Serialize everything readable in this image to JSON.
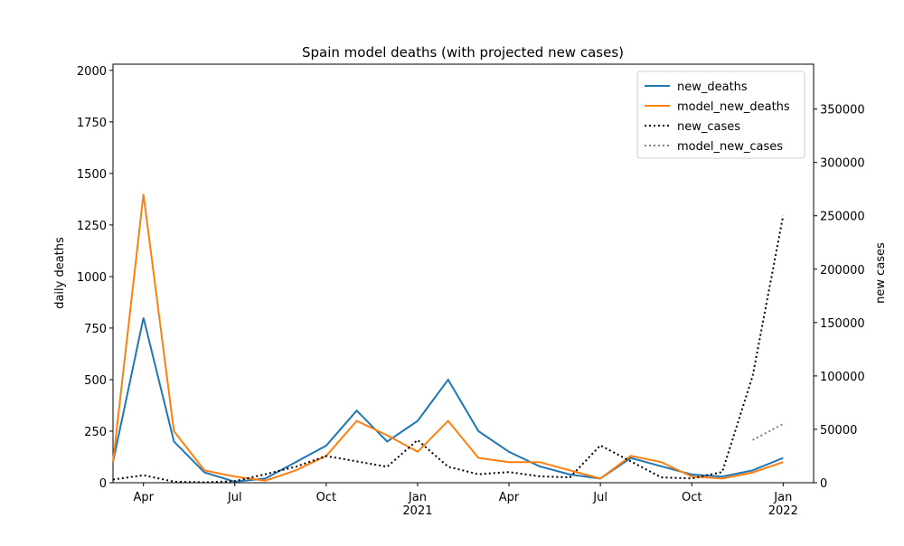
{
  "chart_data": {
    "type": "line",
    "title": "Spain model deaths (with projected new cases)",
    "ylabel": "daily deaths",
    "y2label": "new cases",
    "x": [
      "2020-03",
      "2020-04",
      "2020-05",
      "2020-06",
      "2020-07",
      "2020-08",
      "2020-09",
      "2020-10",
      "2020-11",
      "2020-12",
      "2021-01",
      "2021-02",
      "2021-03",
      "2021-04",
      "2021-05",
      "2021-06",
      "2021-07",
      "2021-08",
      "2021-09",
      "2021-10",
      "2021-11",
      "2021-12",
      "2022-01"
    ],
    "xlim": [
      "2020-03",
      "2022-02"
    ],
    "xticks": [
      {
        "value": "2020-04",
        "label": [
          "Apr"
        ]
      },
      {
        "value": "2020-07",
        "label": [
          "Jul"
        ]
      },
      {
        "value": "2020-10",
        "label": [
          "Oct"
        ]
      },
      {
        "value": "2021-01",
        "label": [
          "Jan",
          "2021"
        ]
      },
      {
        "value": "2021-04",
        "label": [
          "Apr"
        ]
      },
      {
        "value": "2021-07",
        "label": [
          "Jul"
        ]
      },
      {
        "value": "2021-10",
        "label": [
          "Oct"
        ]
      },
      {
        "value": "2022-01",
        "label": [
          "Jan",
          "2022"
        ]
      }
    ],
    "ylim": [
      0,
      2030
    ],
    "yticks": [
      0,
      250,
      500,
      750,
      1000,
      1250,
      1500,
      1750,
      2000
    ],
    "y2lim": [
      0,
      392000
    ],
    "y2ticks": [
      0,
      50000,
      100000,
      150000,
      200000,
      250000,
      300000,
      350000
    ],
    "legend": "upper right",
    "series": [
      {
        "name": "new_deaths",
        "color": "#1f77b4",
        "linestyle": "solid",
        "values": [
          100,
          800,
          200,
          50,
          5,
          20,
          100,
          180,
          350,
          200,
          300,
          500,
          250,
          150,
          80,
          40,
          20,
          120,
          80,
          40,
          30,
          60,
          120
        ]
      },
      {
        "name": "model_new_deaths",
        "color": "#ff7f0e",
        "linestyle": "solid",
        "values": [
          100,
          1400,
          250,
          60,
          30,
          10,
          60,
          130,
          300,
          230,
          150,
          300,
          120,
          100,
          100,
          60,
          20,
          130,
          100,
          30,
          20,
          50,
          100
        ]
      },
      {
        "name": "new_cases",
        "color": "#000000",
        "linestyle": "dotted",
        "axis": "y2",
        "values": [
          3000,
          7000,
          1000,
          300,
          1500,
          8000,
          15000,
          25000,
          20000,
          15000,
          40000,
          15000,
          8000,
          10000,
          6000,
          5000,
          35000,
          20000,
          5000,
          4000,
          10000,
          100000,
          250000
        ]
      },
      {
        "name": "model_new_cases",
        "color": "#808080",
        "linestyle": "dotted",
        "axis": "y2",
        "values": [
          null,
          null,
          null,
          null,
          null,
          null,
          null,
          null,
          null,
          null,
          null,
          null,
          null,
          null,
          null,
          null,
          null,
          null,
          null,
          null,
          null,
          40000,
          55000
        ]
      }
    ]
  }
}
